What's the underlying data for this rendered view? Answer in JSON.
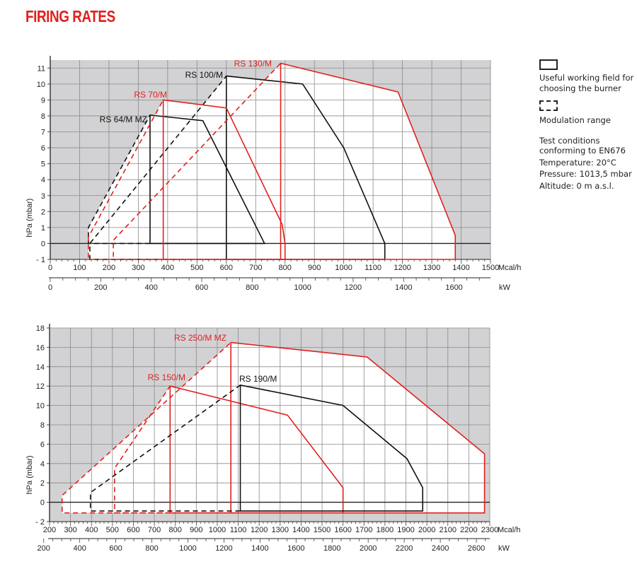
{
  "title": "FIRING RATES",
  "legend": {
    "working_field": "Useful working field for choosing the burner",
    "modulation": "Modulation range",
    "conditions": [
      "Test conditions conforming to EN676",
      "Temperature: 20°C",
      "Pressure: 1013,5 mbar",
      "Altitude: 0 m a.s.l."
    ]
  },
  "chart_data": [
    {
      "type": "area",
      "ylabel": "hPa (mbar)",
      "xlabel": "Mcal/h",
      "x2label": "kW",
      "xlim": [
        0,
        1500
      ],
      "ylim": [
        -1,
        11.5
      ],
      "xticks": [
        0,
        100,
        200,
        300,
        400,
        500,
        600,
        700,
        800,
        900,
        1000,
        1100,
        1200,
        1300,
        1400,
        1500
      ],
      "yticks": [
        -1,
        0,
        1,
        2,
        3,
        4,
        5,
        6,
        7,
        8,
        9,
        10,
        11
      ],
      "ytick_labels": [
        "- 1",
        "0",
        "1",
        "2",
        "3",
        "4",
        "5",
        "6",
        "7",
        "8",
        "9",
        "10",
        "11"
      ],
      "kw_ticks": [
        0,
        200,
        400,
        600,
        800,
        1000,
        1200,
        1400,
        1600
      ],
      "grid": true,
      "series": [
        {
          "name": "RS 64/M MZ",
          "color": "#111111",
          "modulation": [
            [
              340,
              0
            ],
            [
              130,
              0
            ],
            [
              130,
              1
            ],
            [
              340,
              8.05
            ]
          ],
          "working": [
            [
              340,
              0
            ],
            [
              340,
              8.05
            ],
            [
              520,
              7.7
            ],
            [
              730,
              0
            ]
          ]
        },
        {
          "name": "RS 100/M",
          "color": "#111111",
          "modulation": [
            [
              600,
              -1
            ],
            [
              135,
              -1
            ],
            [
              135,
              0
            ],
            [
              600,
              10.5
            ]
          ],
          "working": [
            [
              600,
              -1
            ],
            [
              600,
              10.5
            ],
            [
              860,
              10
            ],
            [
              1000,
              6
            ],
            [
              1140,
              0
            ],
            [
              1140,
              -1
            ]
          ]
        },
        {
          "name": "RS 70/M",
          "color": "#e0201e",
          "modulation": [
            [
              385,
              -1
            ],
            [
              130,
              -1
            ],
            [
              130,
              0.4
            ],
            [
              385,
              9
            ]
          ],
          "working": [
            [
              385,
              -1
            ],
            [
              385,
              9
            ],
            [
              600,
              8.5
            ],
            [
              790,
              1.2
            ],
            [
              800,
              0
            ],
            [
              800,
              -1
            ]
          ]
        },
        {
          "name": "RS 130/M",
          "color": "#e0201e",
          "modulation": [
            [
              785,
              -1
            ],
            [
              215,
              -1
            ],
            [
              215,
              0.2
            ],
            [
              785,
              11.3
            ]
          ],
          "working": [
            [
              785,
              -1
            ],
            [
              785,
              11.3
            ],
            [
              1185,
              9.5
            ],
            [
              1380,
              0.5
            ],
            [
              1380,
              -1
            ]
          ]
        }
      ]
    },
    {
      "type": "area",
      "ylabel": "hPa (mbar)",
      "xlabel": "Mcal/h",
      "x2label": "kW",
      "xlim": [
        200,
        2300
      ],
      "ylim": [
        -2,
        18
      ],
      "xticks": [
        200,
        300,
        400,
        500,
        600,
        700,
        800,
        900,
        1000,
        1100,
        1200,
        1300,
        1400,
        1500,
        1600,
        1700,
        1800,
        1900,
        2000,
        2100,
        2200,
        2300
      ],
      "yticks": [
        -2,
        0,
        2,
        4,
        6,
        8,
        10,
        12,
        14,
        16,
        18
      ],
      "ytick_labels": [
        "- 2",
        "0",
        "2",
        "4",
        "6",
        "8",
        "10",
        "12",
        "14",
        "16",
        "18"
      ],
      "kw_ticks": [
        200,
        400,
        600,
        800,
        1000,
        1200,
        1400,
        1600,
        1800,
        2000,
        2200,
        2400,
        2600
      ],
      "grid": true,
      "series": [
        {
          "name": "RS 250/M MZ",
          "color": "#e0201e",
          "modulation": [
            [
              1065,
              -1.1
            ],
            [
              260,
              -1.1
            ],
            [
              260,
              0.7
            ],
            [
              1065,
              16.5
            ]
          ],
          "working": [
            [
              1065,
              -1.1
            ],
            [
              1065,
              16.5
            ],
            [
              1715,
              15
            ],
            [
              2275,
              5
            ],
            [
              2275,
              -1.1
            ]
          ]
        },
        {
          "name": "RS 150/M",
          "color": "#e0201e",
          "modulation": [
            [
              775,
              -1.1
            ],
            [
              510,
              -1.1
            ],
            [
              510,
              3.5
            ],
            [
              775,
              12
            ]
          ],
          "working": [
            [
              775,
              -1.1
            ],
            [
              775,
              12
            ],
            [
              1335,
              9
            ],
            [
              1600,
              1.5
            ],
            [
              1600,
              -1.1
            ]
          ]
        },
        {
          "name": "RS 190/M",
          "color": "#111111",
          "modulation": [
            [
              1110,
              -0.9
            ],
            [
              395,
              -0.9
            ],
            [
              395,
              1
            ],
            [
              1110,
              12.1
            ]
          ],
          "working": [
            [
              1110,
              -0.9
            ],
            [
              1110,
              12.1
            ],
            [
              1600,
              10
            ],
            [
              1905,
              4.5
            ],
            [
              1980,
              1.5
            ],
            [
              1980,
              -0.9
            ]
          ]
        }
      ]
    }
  ]
}
